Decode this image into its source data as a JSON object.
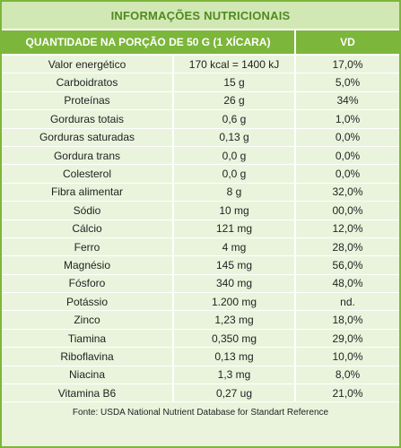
{
  "title": "INFORMAÇÕES NUTRICIONAIS",
  "header": {
    "quantity_label": "QUANTIDADE NA PORÇÃO DE 50 G (1 XÍCARA)",
    "vd_label": "VD"
  },
  "rows": [
    {
      "nutrient": "Valor energético",
      "amount": "170 kcal = 1400 kJ",
      "vd": "17,0%"
    },
    {
      "nutrient": "Carboidratos",
      "amount": "15 g",
      "vd": "5,0%"
    },
    {
      "nutrient": "Proteínas",
      "amount": "26 g",
      "vd": "34%"
    },
    {
      "nutrient": "Gorduras totais",
      "amount": "0,6 g",
      "vd": "1,0%"
    },
    {
      "nutrient": "Gorduras saturadas",
      "amount": "0,13 g",
      "vd": "0,0%"
    },
    {
      "nutrient": "Gordura trans",
      "amount": "0,0 g",
      "vd": "0,0%"
    },
    {
      "nutrient": "Colesterol",
      "amount": "0,0 g",
      "vd": "0,0%"
    },
    {
      "nutrient": "Fibra alimentar",
      "amount": "8 g",
      "vd": "32,0%"
    },
    {
      "nutrient": "Sódio",
      "amount": "10 mg",
      "vd": "00,0%"
    },
    {
      "nutrient": "Cálcio",
      "amount": "121 mg",
      "vd": "12,0%"
    },
    {
      "nutrient": "Ferro",
      "amount": "4 mg",
      "vd": "28,0%"
    },
    {
      "nutrient": "Magnésio",
      "amount": "145 mg",
      "vd": "56,0%"
    },
    {
      "nutrient": "Fósforo",
      "amount": "340 mg",
      "vd": "48,0%"
    },
    {
      "nutrient": "Potássio",
      "amount": "1.200 mg",
      "vd": "nd."
    },
    {
      "nutrient": "Zinco",
      "amount": "1,23 mg",
      "vd": "18,0%"
    },
    {
      "nutrient": "Tiamina",
      "amount": "0,350 mg",
      "vd": "29,0%"
    },
    {
      "nutrient": "Riboflavina",
      "amount": "0,13 mg",
      "vd": "10,0%"
    },
    {
      "nutrient": "Niacina",
      "amount": "1,3 mg",
      "vd": "8,0%"
    },
    {
      "nutrient": "Vitamina B6",
      "amount": "0,27 ug",
      "vd": "21,0%"
    }
  ],
  "footer": "Fonte: USDA National Nutrient Database for Standart Reference",
  "colors": {
    "border": "#7cb63a",
    "title_bg": "#d2e8b4",
    "title_text": "#4f8a1f",
    "header_bg": "#7cb63a",
    "body_bg": "#eaf4dd"
  }
}
